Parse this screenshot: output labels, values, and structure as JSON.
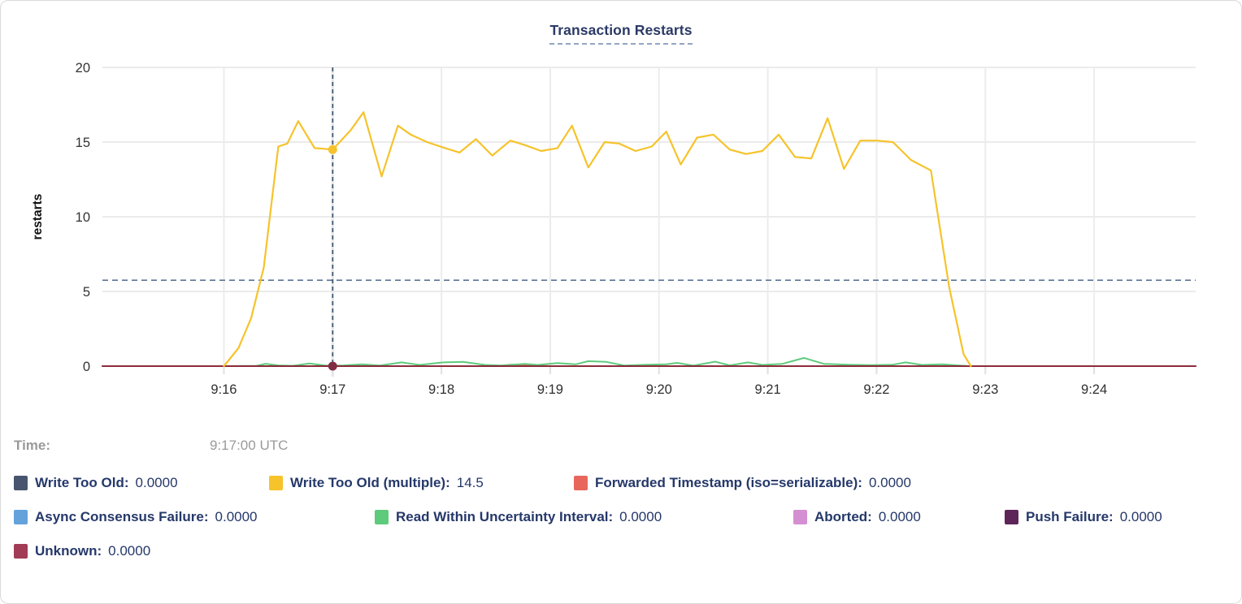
{
  "card": {
    "title": "Transaction Restarts"
  },
  "tooltip": {
    "time_label": "Time:",
    "time_value": "9:17:00 UTC"
  },
  "legend_rows": [
    [
      {
        "label": "Write Too Old:",
        "value": "0.0000",
        "color": "#47566e"
      },
      {
        "label": "Write Too Old (multiple):",
        "value": "14.5",
        "color": "#f6c32b"
      },
      {
        "label": "Forwarded Timestamp (iso=serializable):",
        "value": "0.0000",
        "color": "#e8675d"
      }
    ],
    [
      {
        "label": "Async Consensus Failure:",
        "value": "0.0000",
        "color": "#64a2dc"
      },
      {
        "label": "Read Within Uncertainty Interval:",
        "value": "0.0000",
        "color": "#5ecb7c"
      },
      {
        "label": "Aborted:",
        "value": "0.0000",
        "color": "#d48fd2"
      },
      {
        "label": "Push Failure:",
        "value": "0.0000",
        "color": "#5e2558"
      }
    ],
    [
      {
        "label": "Unknown:",
        "value": "0.0000",
        "color": "#a23b55"
      }
    ]
  ],
  "chart_data": {
    "type": "line",
    "title": "Transaction Restarts",
    "ylabel": "restarts",
    "xlabel": "",
    "ylim": [
      0,
      20
    ],
    "y_ticks": [
      0,
      5,
      10,
      15,
      20
    ],
    "x_ticks": [
      "9:16",
      "9:17",
      "9:18",
      "9:19",
      "9:20",
      "9:21",
      "9:22",
      "9:23",
      "9:24"
    ],
    "x_domain_seconds": [
      -67,
      536
    ],
    "grid": true,
    "legend_position": "bottom",
    "threshold_line": {
      "value": 5.75,
      "style": "dashed",
      "color": "#5b7597"
    },
    "crosshair": {
      "seconds": 60,
      "time_label": "9:17:00 UTC",
      "color": "#3d5878",
      "markers": [
        {
          "series": "Write Too Old (multiple)",
          "value": 14.5,
          "color": "#f6c32b"
        },
        {
          "series": "Unknown",
          "value": 0,
          "color": "#822c44"
        }
      ]
    },
    "series": [
      {
        "name": "Forwarded Timestamp (iso=serializable)",
        "color": "#e8675d",
        "width": 2,
        "points": [
          [
            -67,
            0
          ],
          [
            150,
            0
          ],
          [
            158,
            0.1
          ],
          [
            166,
            0.08
          ],
          [
            174,
            0.03
          ],
          [
            180,
            0
          ],
          [
            536,
            0
          ]
        ]
      },
      {
        "name": "Read Within Uncertainty Interval",
        "color": "#5ecb7c",
        "width": 2,
        "points": [
          [
            0,
            0
          ],
          [
            18,
            0.02
          ],
          [
            23,
            0.16
          ],
          [
            30,
            0.05
          ],
          [
            38,
            0.02
          ],
          [
            47,
            0.18
          ],
          [
            56,
            0.04
          ],
          [
            66,
            0.05
          ],
          [
            76,
            0.12
          ],
          [
            86,
            0.04
          ],
          [
            98,
            0.25
          ],
          [
            108,
            0.08
          ],
          [
            121,
            0.25
          ],
          [
            132,
            0.28
          ],
          [
            144,
            0.08
          ],
          [
            153,
            0.04
          ],
          [
            166,
            0.15
          ],
          [
            173,
            0.08
          ],
          [
            184,
            0.2
          ],
          [
            194,
            0.12
          ],
          [
            201,
            0.33
          ],
          [
            211,
            0.28
          ],
          [
            221,
            0.04
          ],
          [
            233,
            0.1
          ],
          [
            244,
            0.12
          ],
          [
            250,
            0.22
          ],
          [
            259,
            0.04
          ],
          [
            271,
            0.3
          ],
          [
            279,
            0.05
          ],
          [
            289,
            0.25
          ],
          [
            297,
            0.08
          ],
          [
            308,
            0.15
          ],
          [
            320,
            0.55
          ],
          [
            331,
            0.15
          ],
          [
            344,
            0.1
          ],
          [
            357,
            0.07
          ],
          [
            369,
            0.1
          ],
          [
            376,
            0.25
          ],
          [
            385,
            0.08
          ],
          [
            396,
            0.12
          ],
          [
            406,
            0.04
          ],
          [
            411,
            0
          ]
        ]
      },
      {
        "name": "Unknown",
        "color": "#8e2b3c",
        "width": 2,
        "points": [
          [
            -67,
            0
          ],
          [
            536,
            0
          ]
        ]
      },
      {
        "name": "Write Too Old (multiple)",
        "color": "#f6c32b",
        "width": 2.2,
        "points": [
          [
            0,
            0
          ],
          [
            8,
            1.2
          ],
          [
            15,
            3.2
          ],
          [
            22,
            6.6
          ],
          [
            30,
            14.7
          ],
          [
            35,
            14.9
          ],
          [
            41,
            16.4
          ],
          [
            50,
            14.6
          ],
          [
            60,
            14.5
          ],
          [
            70,
            15.8
          ],
          [
            77,
            17.0
          ],
          [
            87,
            12.7
          ],
          [
            96,
            16.1
          ],
          [
            103,
            15.5
          ],
          [
            112,
            15.0
          ],
          [
            122,
            14.6
          ],
          [
            130,
            14.3
          ],
          [
            139,
            15.2
          ],
          [
            148,
            14.1
          ],
          [
            158,
            15.1
          ],
          [
            166,
            14.8
          ],
          [
            175,
            14.4
          ],
          [
            184,
            14.6
          ],
          [
            192,
            16.1
          ],
          [
            201,
            13.3
          ],
          [
            210,
            15.0
          ],
          [
            218,
            14.9
          ],
          [
            227,
            14.4
          ],
          [
            236,
            14.7
          ],
          [
            244,
            15.7
          ],
          [
            252,
            13.5
          ],
          [
            261,
            15.3
          ],
          [
            270,
            15.5
          ],
          [
            279,
            14.5
          ],
          [
            288,
            14.2
          ],
          [
            297,
            14.4
          ],
          [
            306,
            15.5
          ],
          [
            315,
            14.0
          ],
          [
            324,
            13.9
          ],
          [
            333,
            16.6
          ],
          [
            342,
            13.2
          ],
          [
            351,
            15.1
          ],
          [
            360,
            15.1
          ],
          [
            369,
            15.0
          ],
          [
            379,
            13.8
          ],
          [
            390,
            13.1
          ],
          [
            400,
            5.3
          ],
          [
            408,
            0.8
          ],
          [
            412,
            0
          ]
        ]
      }
    ]
  }
}
